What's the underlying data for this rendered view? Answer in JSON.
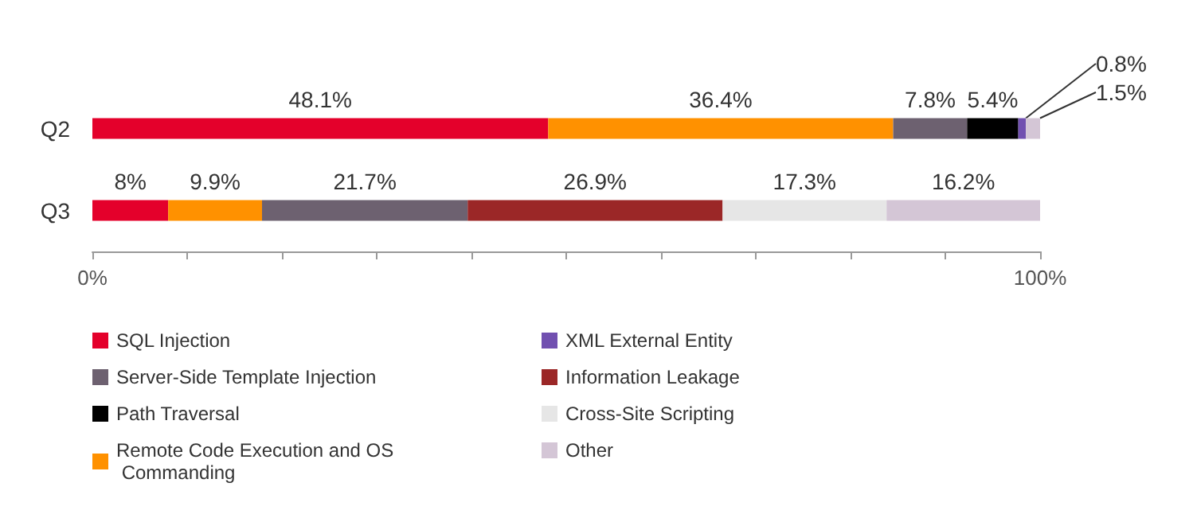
{
  "chart_data": {
    "type": "bar",
    "orientation": "horizontal",
    "stacked": true,
    "categories": [
      "Q2",
      "Q3"
    ],
    "xlim": [
      0,
      100
    ],
    "xticks": [
      {
        "value": 0,
        "label": "0%"
      },
      {
        "value": 10,
        "label": null
      },
      {
        "value": 20,
        "label": null
      },
      {
        "value": 30,
        "label": null
      },
      {
        "value": 40,
        "label": null
      },
      {
        "value": 50,
        "label": null
      },
      {
        "value": 60,
        "label": null
      },
      {
        "value": 70,
        "label": null
      },
      {
        "value": 80,
        "label": null
      },
      {
        "value": 90,
        "label": null
      },
      {
        "value": 100,
        "label": "100%"
      }
    ],
    "series": [
      {
        "name": "SQL Injection",
        "color": "#e4002b",
        "values": [
          48.1,
          8
        ],
        "value_labels": [
          "48.1%",
          "8%"
        ]
      },
      {
        "name": "Remote Code Execution and OS Commanding",
        "color": "#ff9100",
        "values": [
          36.4,
          9.9
        ],
        "value_labels": [
          "36.4%",
          "9.9%"
        ]
      },
      {
        "name": "Server-Side Template Injection",
        "color": "#6d6170",
        "values": [
          7.8,
          21.7
        ],
        "value_labels": [
          "7.8%",
          "21.7%"
        ]
      },
      {
        "name": "Path Traversal",
        "color": "#000000",
        "values": [
          5.4,
          null
        ],
        "value_labels": [
          "5.4%",
          null
        ]
      },
      {
        "name": "XML External Entity",
        "color": "#7150b0",
        "values": [
          0.8,
          null
        ],
        "value_labels": [
          "0.8%",
          null
        ]
      },
      {
        "name": "Information Leakage",
        "color": "#9b2727",
        "values": [
          null,
          26.9
        ],
        "value_labels": [
          null,
          "26.9%"
        ]
      },
      {
        "name": "Cross-Site Scripting",
        "color": "#e6e6e6",
        "values": [
          null,
          17.3
        ],
        "value_labels": [
          null,
          "17.3%"
        ]
      },
      {
        "name": "Other",
        "color": "#d4c6d6",
        "values": [
          1.5,
          16.2
        ],
        "value_labels": [
          "1.5%",
          "16.2%"
        ]
      }
    ],
    "grid": false,
    "legend": "bottom"
  }
}
